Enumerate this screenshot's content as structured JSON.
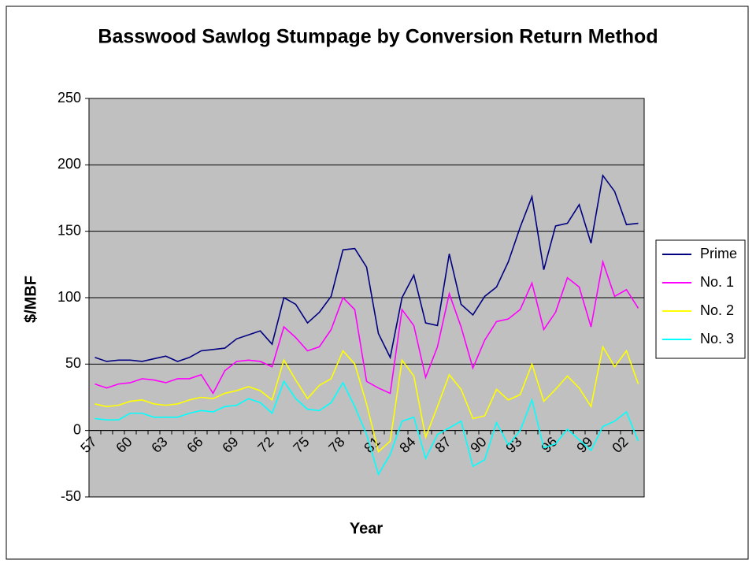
{
  "chart_data": {
    "type": "line",
    "title": "Basswood Sawlog Stumpage by Conversion Return Method",
    "x_label": "Year",
    "y_label": "$/MBF",
    "categories": [
      "57",
      null,
      null,
      "60",
      null,
      null,
      "63",
      null,
      null,
      "66",
      null,
      null,
      "69",
      null,
      null,
      "72",
      null,
      null,
      "75",
      null,
      null,
      "78",
      null,
      null,
      "81",
      null,
      null,
      "84",
      null,
      null,
      "87",
      null,
      null,
      "90",
      null,
      null,
      "93",
      null,
      null,
      "96",
      null,
      null,
      "99",
      null,
      null,
      "02",
      null
    ],
    "series": [
      {
        "name": "Prime",
        "color": "#000080",
        "values": [
          55,
          52,
          53,
          53,
          52,
          54,
          56,
          52,
          55,
          60,
          61,
          62,
          69,
          72,
          75,
          65,
          100,
          95,
          81,
          89,
          101,
          136,
          137,
          123,
          73,
          55,
          100,
          117,
          81,
          79,
          133,
          95,
          87,
          101,
          108,
          127,
          153,
          176,
          121,
          154,
          156,
          170,
          141,
          192,
          180,
          155,
          156
        ]
      },
      {
        "name": "No. 1",
        "color": "#ff00ff",
        "values": [
          35,
          32,
          35,
          36,
          39,
          38,
          36,
          39,
          39,
          42,
          28,
          45,
          52,
          53,
          52,
          48,
          78,
          70,
          60,
          63,
          76,
          100,
          91,
          37,
          32,
          28,
          91,
          79,
          40,
          63,
          103,
          78,
          47,
          68,
          82,
          84,
          91,
          111,
          76,
          89,
          115,
          108,
          78,
          127,
          101,
          106,
          92
        ]
      },
      {
        "name": "No. 2",
        "color": "#ffff00",
        "values": [
          20,
          18,
          19,
          22,
          23,
          20,
          19,
          20,
          23,
          25,
          24,
          28,
          30,
          33,
          30,
          23,
          53,
          38,
          24,
          34,
          39,
          60,
          50,
          20,
          -16,
          -8,
          53,
          41,
          -5,
          18,
          42,
          31,
          9,
          11,
          31,
          23,
          27,
          50,
          22,
          31,
          41,
          32,
          18,
          63,
          48,
          60,
          35
        ]
      },
      {
        "name": "No. 3",
        "color": "#00ffff",
        "values": [
          9,
          8,
          8,
          13,
          13,
          10,
          10,
          10,
          13,
          15,
          14,
          18,
          19,
          24,
          21,
          13,
          37,
          24,
          16,
          15,
          21,
          36,
          18,
          -3,
          -33,
          -18,
          7,
          10,
          -21,
          -3,
          2,
          7,
          -27,
          -22,
          6,
          -11,
          0,
          23,
          -13,
          -10,
          1,
          -7,
          -15,
          3,
          7,
          14,
          -8
        ]
      }
    ],
    "ylim": [
      -50,
      250
    ],
    "yticks": [
      -50,
      0,
      50,
      100,
      150,
      200,
      250
    ],
    "grid": true,
    "legend": "right",
    "plot_background": "#c0c0c0"
  }
}
